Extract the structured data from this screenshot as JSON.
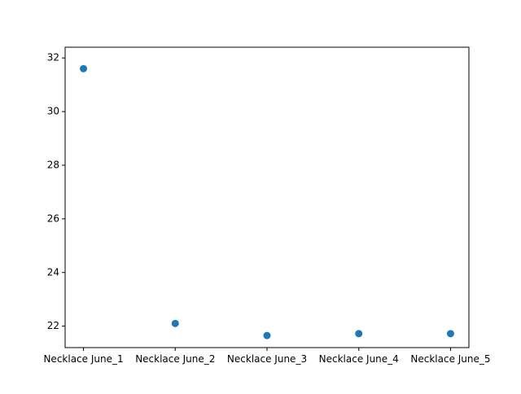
{
  "chart_data": {
    "type": "scatter",
    "title": "",
    "xlabel": "",
    "ylabel": "",
    "categories": [
      "Necklace June_1",
      "Necklace June_2",
      "Necklace June_3",
      "Necklace June_4",
      "Necklace June_5"
    ],
    "values": [
      31.6,
      22.1,
      21.65,
      21.72,
      21.72
    ],
    "ylim": [
      21.2,
      32.4
    ],
    "y_ticks": [
      22,
      24,
      26,
      28,
      30,
      32
    ],
    "y_tick_labels": [
      "22",
      "24",
      "26",
      "28",
      "30",
      "32"
    ],
    "grid": false,
    "legend": "none",
    "colors": {
      "marker": "#1f77b4",
      "axes": "#000000",
      "background": "#ffffff"
    }
  }
}
